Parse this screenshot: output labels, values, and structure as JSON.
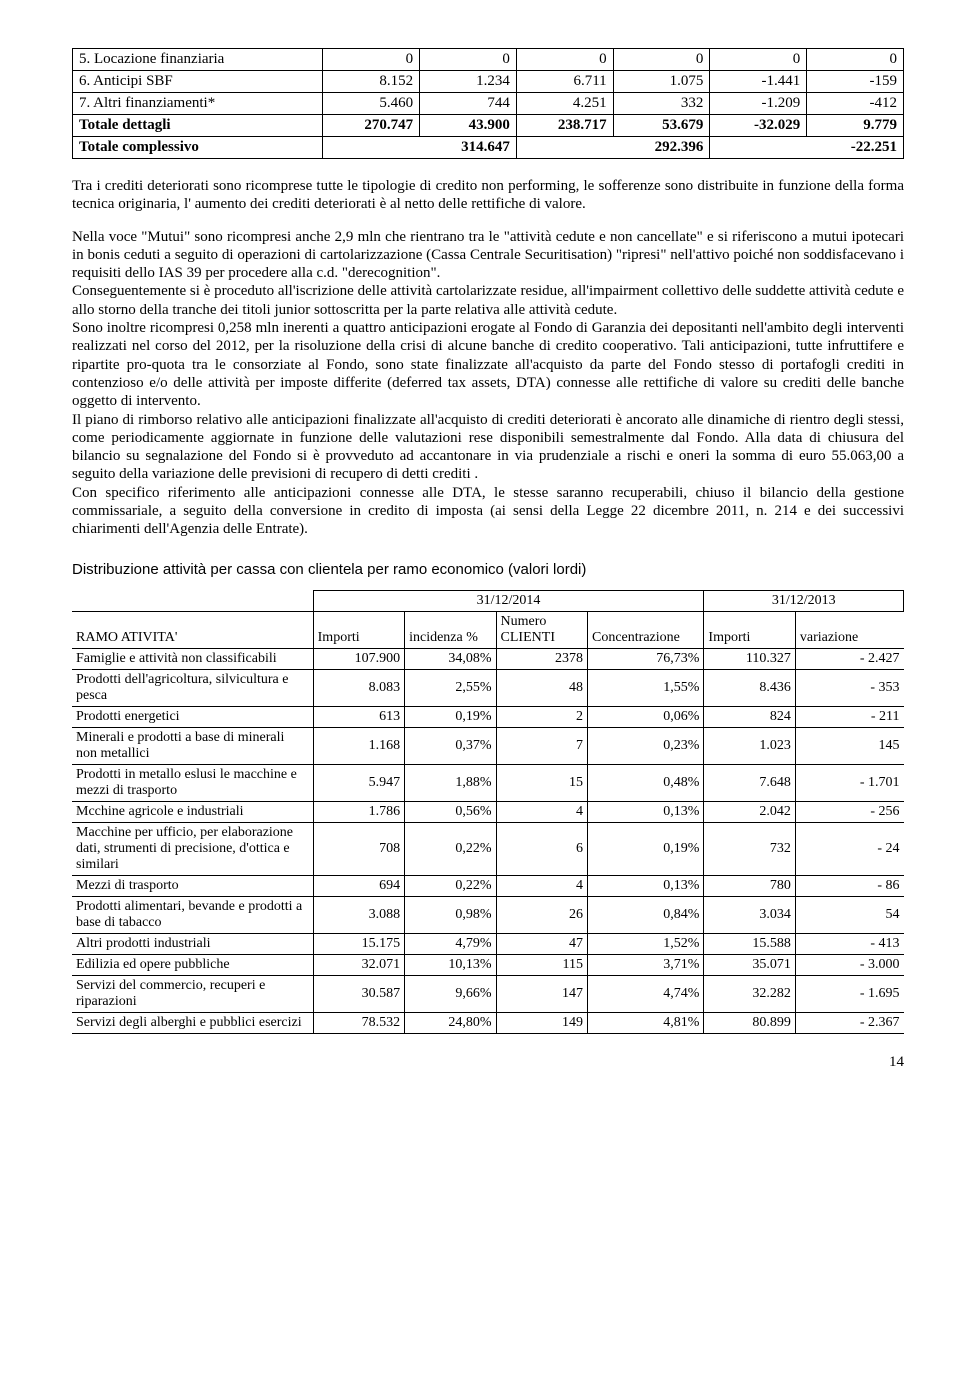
{
  "table1": {
    "rows": [
      {
        "label": "5. Locazione finanziaria",
        "c": [
          "0",
          "0",
          "0",
          "0",
          "0",
          "0"
        ],
        "bold": false
      },
      {
        "label": "6. Anticipi SBF",
        "c": [
          "8.152",
          "1.234",
          "6.711",
          "1.075",
          "-1.441",
          "-159"
        ],
        "bold": false
      },
      {
        "label": "7. Altri finanziamenti*",
        "c": [
          "5.460",
          "744",
          "4.251",
          "332",
          "-1.209",
          "-412"
        ],
        "bold": false
      },
      {
        "label": "Totale dettagli",
        "c": [
          "270.747",
          "43.900",
          "238.717",
          "53.679",
          "-32.029",
          "9.779"
        ],
        "bold": true
      }
    ],
    "total_row": {
      "label": "Totale complessivo",
      "c": [
        "314.647",
        "292.396",
        "-22.251"
      ],
      "bold": true
    }
  },
  "para1": "Tra i crediti deteriorati sono ricomprese tutte le tipologie di credito non performing, le sofferenze sono distribuite in funzione della forma tecnica originaria, l' aumento dei crediti deteriorati è al netto delle rettifiche di valore.",
  "para2": "Nella voce \"Mutui\" sono ricompresi anche 2,9 mln che rientrano tra le \"attività cedute e non cancellate\" e si riferiscono a mutui ipotecari in bonis ceduti a seguito di operazioni di cartolarizzazione (Cassa Centrale Securitisation)  \"ripresi\" nell'attivo poiché non soddisfacevano i requisiti dello IAS 39 per procedere alla c.d. \"derecognition\".",
  "para3": "Conseguentemente si è proceduto all'iscrizione delle attività cartolarizzate residue, all'impairment collettivo delle suddette attività cedute e allo storno della tranche dei titoli junior sottoscritta per la parte relativa alle attività cedute.",
  "para4": "Sono inoltre ricompresi 0,258 mln inerenti a quattro anticipazioni erogate al Fondo di Garanzia  dei depositanti  nell'ambito degli interventi realizzati nel corso del 2012, per la risoluzione della crisi di alcune banche di credito cooperativo. Tali anticipazioni, tutte infruttifere e ripartite pro-quota tra le consorziate al Fondo, sono state finalizzate all'acquisto da parte del Fondo stesso di portafogli crediti in contenzioso e/o delle attività per imposte differite (deferred tax assets, DTA) connesse alle rettifiche di valore su crediti delle banche oggetto di intervento.",
  "para5": "Il piano di rimborso relativo alle anticipazioni finalizzate all'acquisto di crediti deteriorati è ancorato alle dinamiche di rientro degli stessi,  come periodicamente  aggiornate in funzione  delle valutazioni  rese disponibili semestralmente dal Fondo.  Alla data di chiusura del bilancio su segnalazione del Fondo si è provveduto ad accantonare in via prudenziale a rischi e oneri la somma di euro 55.063,00 a seguito della variazione delle previsioni di recupero di detti  crediti .",
  "para6": "Con specifico  riferimento alle anticipazioni  connesse alle DTA, le stesse  saranno recuperabili,  chiuso il bilancio della gestione commissariale, a seguito della conversione in credito di imposta (ai sensi della Legge 22 dicembre 2011, n. 214 e dei successivi chiarimenti dell'Agenzia delle Entrate).",
  "section_title": "Distribuzione attività per cassa con clientela per ramo economico (valori lordi)",
  "table2": {
    "group_headers": [
      "31/12/2014",
      "31/12/2013"
    ],
    "row_header": "RAMO ATIVITA'",
    "col_headers": [
      "Importi",
      "incidenza %",
      "Numero CLIENTI",
      "Concentrazione",
      "Importi",
      "variazione"
    ],
    "rows": [
      {
        "label": "Famiglie e attività non classificabili",
        "c": [
          "107.900",
          "34,08%",
          "2378",
          "76,73%",
          "110.327",
          "-   2.427"
        ]
      },
      {
        "label": "Prodotti dell'agricoltura, silvicultura e pesca",
        "c": [
          "8.083",
          "2,55%",
          "48",
          "1,55%",
          "8.436",
          "-    353"
        ]
      },
      {
        "label": "Prodotti energetici",
        "c": [
          "613",
          "0,19%",
          "2",
          "0,06%",
          "824",
          "-    211"
        ]
      },
      {
        "label": "Minerali e  prodotti a base di minerali non metallici",
        "c": [
          "1.168",
          "0,37%",
          "7",
          "0,23%",
          "1.023",
          "145"
        ]
      },
      {
        "label": "Prodotti in metallo eslusi le macchine e mezzi di trasporto",
        "c": [
          "5.947",
          "1,88%",
          "15",
          "0,48%",
          "7.648",
          "-   1.701"
        ]
      },
      {
        "label": "Mcchine agricole e industriali",
        "c": [
          "1.786",
          "0,56%",
          "4",
          "0,13%",
          "2.042",
          "-    256"
        ]
      },
      {
        "label": "Macchine per ufficio, per elaborazione dati, strumenti di precisione, d'ottica e similari",
        "c": [
          "708",
          "0,22%",
          "6",
          "0,19%",
          "732",
          "-     24"
        ]
      },
      {
        "label": "Mezzi di trasporto",
        "c": [
          "694",
          "0,22%",
          "4",
          "0,13%",
          "780",
          "-     86"
        ]
      },
      {
        "label": "Prodotti alimentari, bevande e prodotti a base di tabacco",
        "c": [
          "3.088",
          "0,98%",
          "26",
          "0,84%",
          "3.034",
          "54"
        ]
      },
      {
        "label": "Altri prodotti industriali",
        "c": [
          "15.175",
          "4,79%",
          "47",
          "1,52%",
          "15.588",
          "-    413"
        ]
      },
      {
        "label": "Edilizia ed opere pubbliche",
        "c": [
          "32.071",
          "10,13%",
          "115",
          "3,71%",
          "35.071",
          "-   3.000"
        ]
      },
      {
        "label": "Servizi del commercio, recuperi e riparazioni",
        "c": [
          "30.587",
          "9,66%",
          "147",
          "4,74%",
          "32.282",
          "-   1.695"
        ]
      },
      {
        "label": "Servizi degli alberghi e pubblici esercizi",
        "c": [
          "78.532",
          "24,80%",
          "149",
          "4,81%",
          "80.899",
          "-   2.367"
        ]
      }
    ]
  },
  "page_number": "14"
}
